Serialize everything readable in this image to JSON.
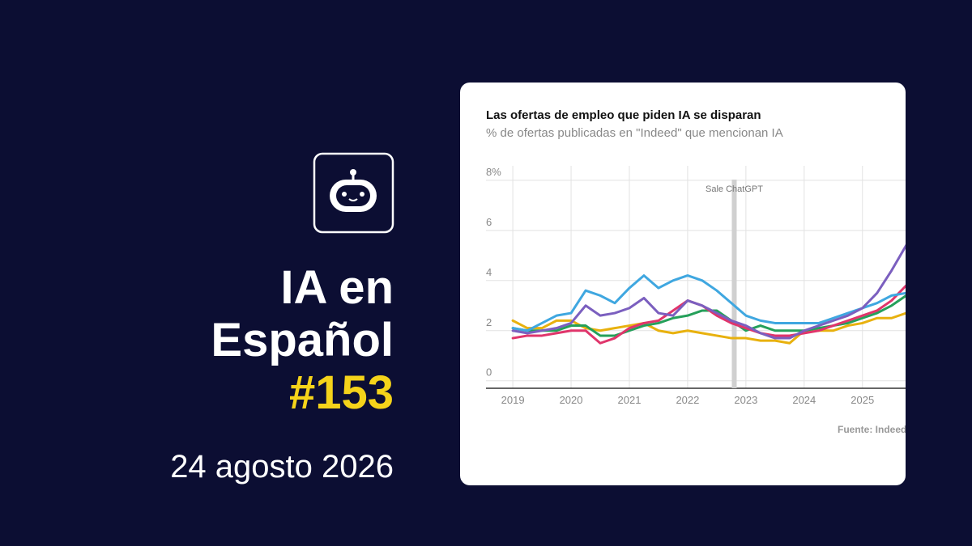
{
  "cover": {
    "title_lines": [
      "IA en",
      "Español"
    ],
    "issue": "#153",
    "date": "24 agosto 2026"
  },
  "chart_data": {
    "type": "line",
    "title": "Las ofertas de empleo que piden IA se disparan",
    "subtitle": "% de ofertas publicadas en \"Indeed\" que mencionan IA",
    "source": "Fuente: Indeed",
    "x": [
      2019,
      2019.25,
      2019.5,
      2019.75,
      2020,
      2020.25,
      2020.5,
      2020.75,
      2021,
      2021.25,
      2021.5,
      2021.75,
      2022,
      2022.25,
      2022.5,
      2022.75,
      2023,
      2023.25,
      2023.5,
      2023.75,
      2024,
      2024.25,
      2024.5,
      2024.75,
      2025,
      2025.25,
      2025.5,
      2025.75
    ],
    "series": [
      {
        "color": "#e8b10e",
        "values": [
          2.4,
          2.1,
          2.1,
          2.4,
          2.4,
          2.1,
          2.0,
          2.1,
          2.2,
          2.3,
          2.0,
          1.9,
          2.0,
          1.9,
          1.8,
          1.7,
          1.7,
          1.6,
          1.6,
          1.5,
          2.0,
          2.0,
          2.0,
          2.2,
          2.3,
          2.5,
          2.5,
          2.7
        ]
      },
      {
        "color": "#25a05a",
        "values": [
          2.1,
          2.0,
          2.0,
          2.0,
          2.2,
          2.2,
          1.8,
          1.8,
          2.0,
          2.2,
          2.3,
          2.5,
          2.6,
          2.8,
          2.8,
          2.4,
          2.0,
          2.2,
          2.0,
          2.0,
          2.0,
          2.1,
          2.2,
          2.3,
          2.5,
          2.7,
          3.0,
          3.4
        ]
      },
      {
        "color": "#e0356b",
        "values": [
          1.7,
          1.8,
          1.8,
          1.9,
          2.0,
          2.0,
          1.5,
          1.7,
          2.1,
          2.3,
          2.4,
          2.8,
          3.2,
          3.0,
          2.6,
          2.3,
          2.1,
          1.9,
          1.8,
          1.8,
          1.9,
          2.0,
          2.2,
          2.4,
          2.6,
          2.8,
          3.2,
          3.8
        ]
      },
      {
        "color": "#3fa7e0",
        "values": [
          2.1,
          2.0,
          2.3,
          2.6,
          2.7,
          3.6,
          3.4,
          3.1,
          3.7,
          4.2,
          3.7,
          4.0,
          4.2,
          4.0,
          3.6,
          3.1,
          2.6,
          2.4,
          2.3,
          2.3,
          2.3,
          2.3,
          2.5,
          2.7,
          2.9,
          3.1,
          3.4,
          3.5
        ]
      },
      {
        "color": "#7b5fbf",
        "values": [
          2.0,
          1.9,
          2.0,
          2.1,
          2.3,
          3.0,
          2.6,
          2.7,
          2.9,
          3.3,
          2.7,
          2.6,
          3.2,
          3.0,
          2.7,
          2.4,
          2.2,
          1.9,
          1.7,
          1.7,
          2.0,
          2.2,
          2.4,
          2.6,
          2.9,
          3.5,
          4.4,
          5.4
        ]
      }
    ],
    "xlim": [
      2018.54,
      2025.74
    ],
    "xticks": [
      2019,
      2020,
      2021,
      2022,
      2023,
      2024,
      2025
    ],
    "ylim": [
      -0.3,
      8.9
    ],
    "yticks": [
      0,
      2,
      4,
      6,
      {
        "value": 8,
        "label": "8%"
      }
    ],
    "grid": true,
    "annotations": [
      {
        "text": "Sale ChatGPT",
        "x": 2022.8
      }
    ]
  }
}
